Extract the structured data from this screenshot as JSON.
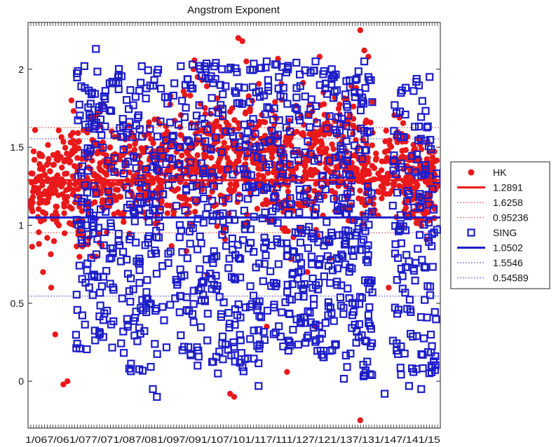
{
  "chart_data": {
    "type": "scatter",
    "title": "Angstrom Exponent",
    "xlabel": "",
    "ylabel": "",
    "ylim": [
      -0.3,
      2.3
    ],
    "yticks": [
      "0",
      "0.5",
      "1",
      "1.5",
      "2"
    ],
    "ytick_values": [
      0,
      0.5,
      1,
      1.5,
      2
    ],
    "xtick_text": "1/067/061/077/071/087/081/097/091/107/101/117/111/127/121/137/131/147/141/15",
    "grid": false,
    "legend_position": "right",
    "series": [
      {
        "name": "HK",
        "marker": "filled-circle",
        "color": "#e8191b",
        "segments": [
          {
            "x0": 0.0,
            "x1": 0.09,
            "center": 1.25,
            "spread": 0.22
          },
          {
            "x0": 0.09,
            "x1": 0.18,
            "center": 1.3,
            "spread": 0.32
          },
          {
            "x0": 0.18,
            "x1": 0.3,
            "center": 1.32,
            "spread": 0.22
          },
          {
            "x0": 0.3,
            "x1": 0.4,
            "center": 1.38,
            "spread": 0.26
          },
          {
            "x0": 0.4,
            "x1": 0.5,
            "center": 1.42,
            "spread": 0.28
          },
          {
            "x0": 0.5,
            "x1": 0.6,
            "center": 1.45,
            "spread": 0.24
          },
          {
            "x0": 0.6,
            "x1": 0.7,
            "center": 1.4,
            "spread": 0.28
          },
          {
            "x0": 0.7,
            "x1": 0.8,
            "center": 1.42,
            "spread": 0.3
          },
          {
            "x0": 0.8,
            "x1": 0.92,
            "center": 1.35,
            "spread": 0.22
          },
          {
            "x0": 0.92,
            "x1": 1.0,
            "center": 1.28,
            "spread": 0.2
          }
        ],
        "outliers": [
          [
            0.02,
            0.88
          ],
          [
            0.03,
            0.7
          ],
          [
            0.05,
            0.6
          ],
          [
            0.06,
            0.3
          ],
          [
            0.08,
            -0.02
          ],
          [
            0.09,
            0.0
          ],
          [
            0.1,
            1.8
          ],
          [
            0.16,
            0.8
          ],
          [
            0.28,
            1.3
          ],
          [
            0.49,
            -0.08
          ],
          [
            0.5,
            -0.1
          ],
          [
            0.51,
            2.2
          ],
          [
            0.52,
            2.18
          ],
          [
            0.53,
            2.05
          ],
          [
            0.4,
            2.0
          ],
          [
            0.41,
            1.95
          ],
          [
            0.71,
            2.08
          ],
          [
            0.73,
            1.7
          ],
          [
            0.81,
            2.25
          ],
          [
            0.82,
            2.12
          ],
          [
            0.83,
            2.08
          ],
          [
            0.8,
            1.88
          ],
          [
            0.81,
            -0.28
          ],
          [
            0.7,
            0.35
          ],
          [
            0.68,
            0.7
          ],
          [
            0.58,
            0.35
          ],
          [
            0.63,
            0.06
          ],
          [
            0.88,
            0.6
          ]
        ],
        "mean": 1.2891,
        "upper": 1.6258,
        "lower": 0.95236,
        "legend_labels": [
          "HK",
          "1.2891",
          "1.6258",
          "0.95236"
        ]
      },
      {
        "name": "SING",
        "marker": "open-square",
        "color": "#1e1ec8",
        "segments": [
          {
            "x0": 0.11,
            "x1": 0.22,
            "center": 1.1,
            "spread": 0.58
          },
          {
            "x0": 0.22,
            "x1": 0.33,
            "center": 1.05,
            "spread": 0.62
          },
          {
            "x0": 0.33,
            "x1": 0.45,
            "center": 1.08,
            "spread": 0.6
          },
          {
            "x0": 0.45,
            "x1": 0.56,
            "center": 1.05,
            "spread": 0.62
          },
          {
            "x0": 0.56,
            "x1": 0.66,
            "center": 1.12,
            "spread": 0.58
          },
          {
            "x0": 0.66,
            "x1": 0.76,
            "center": 1.08,
            "spread": 0.58
          },
          {
            "x0": 0.76,
            "x1": 0.84,
            "center": 1.0,
            "spread": 0.62
          },
          {
            "x0": 0.89,
            "x1": 1.0,
            "center": 1.0,
            "spread": 0.6
          }
        ],
        "outliers": [
          [
            0.16,
            2.13
          ],
          [
            0.2,
            1.92
          ],
          [
            0.38,
            1.9
          ],
          [
            0.47,
            2.0
          ],
          [
            0.58,
            2.05
          ],
          [
            0.61,
            1.95
          ],
          [
            0.7,
            2.05
          ],
          [
            0.74,
            2.0
          ],
          [
            0.82,
            2.05
          ],
          [
            0.83,
            1.95
          ],
          [
            0.31,
            -0.1
          ],
          [
            0.3,
            -0.05
          ],
          [
            0.56,
            -0.03
          ],
          [
            0.87,
            -0.08
          ],
          [
            0.93,
            -0.03
          ],
          [
            0.96,
            -0.05
          ],
          [
            0.46,
            0.05
          ],
          [
            0.41,
            0.1
          ]
        ],
        "mean": 1.0502,
        "upper": 1.5546,
        "lower": 0.54589,
        "legend_labels": [
          "SING",
          "1.0502",
          "1.5546",
          "0.54589"
        ]
      }
    ]
  },
  "colors": {
    "hk": "#e8191b",
    "hk_light": "#f08a8a",
    "sing": "#1e1ec8",
    "sing_light": "#8a8ae6",
    "axis": "#222222"
  }
}
